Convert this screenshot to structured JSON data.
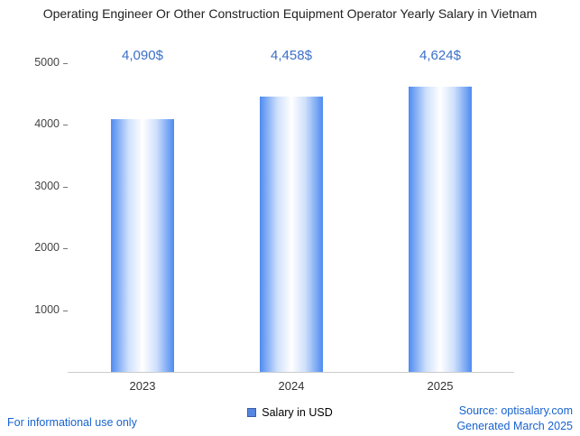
{
  "chart_data": {
    "type": "bar",
    "title": "Operating Engineer Or Other Construction Equipment Operator Yearly Salary in Vietnam",
    "categories": [
      "2023",
      "2024",
      "2025"
    ],
    "series": [
      {
        "name": "Salary in USD",
        "values": [
          4090,
          4458,
          4624
        ]
      }
    ],
    "value_labels": [
      "4,090$",
      "4,458$",
      "4,624$"
    ],
    "xlabel": "",
    "ylabel": "",
    "ylim": [
      0,
      5000
    ],
    "yticks": [
      1000,
      2000,
      3000,
      4000,
      5000
    ],
    "grid": false,
    "legend_position": "bottom"
  },
  "legend": {
    "label": "Salary in USD"
  },
  "footer": {
    "disclaimer": "For informational use only",
    "source": "Source: optisalary.com",
    "generated": "Generated March 2025"
  },
  "colors": {
    "bar_edge": "#4e8bf0",
    "bar_light": "#cfe0fb",
    "bar_mid": "#ffffff",
    "value_label": "#3b6fc9",
    "footer_link": "#1763cf",
    "axis_line": "#cccccc",
    "title": "#212121",
    "tick_label": "#444444",
    "x_label": "#333333",
    "legend_swatch": "#5586e0",
    "legend_swatch_border": "#3a5fa8"
  }
}
